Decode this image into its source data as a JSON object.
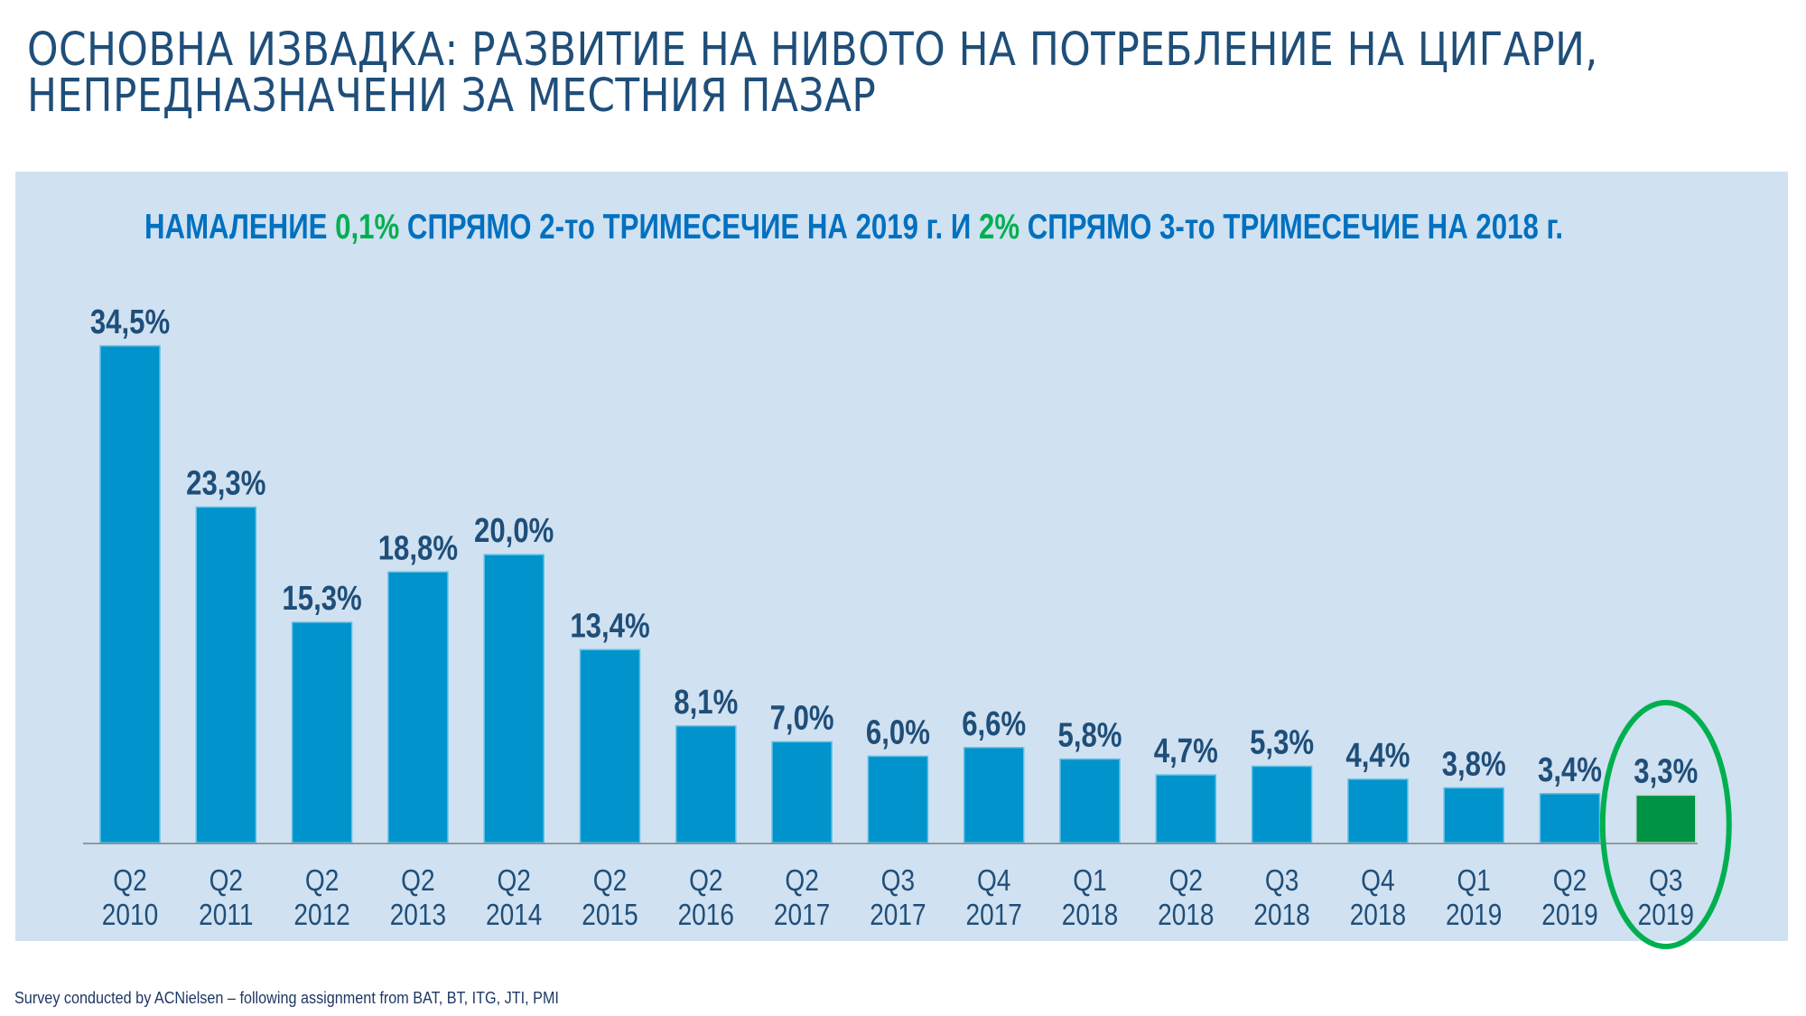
{
  "title": {
    "line1": "ОСНОВНА ИЗВАДКА: РАЗВИТИЕ НА НИВОТО НА ПОТРЕБЛЕНИЕ НА ЦИГАРИ,",
    "line2": "НЕПРЕДНАЗНАЧЕНИ ЗА МЕСТНИЯ ПАЗАР"
  },
  "subtitle": {
    "p1": "НАМАЛЕНИЕ ",
    "v1": "0,1%",
    "p2": " СПРЯМО 2-то ТРИМЕСЕЧИЕ НА 2019 г. И ",
    "v2": "2%",
    "p3": " СПРЯМО 3-то ТРИМЕСЕЧИЕ НА 2018 г."
  },
  "footer": "Survey conducted by ACNielsen – following assignment from BAT, BT, ITG, JTI, PMI",
  "colors": {
    "bar": "#0093cc",
    "highlight": "#009245",
    "accent_green": "#00b050",
    "label": "#1f4e79",
    "panel": "#d0e1f1"
  },
  "chart_data": {
    "type": "bar",
    "title": "",
    "xlabel": "",
    "ylabel": "",
    "ylim": [
      0,
      35
    ],
    "grid": false,
    "categories": [
      [
        "Q2",
        "2010"
      ],
      [
        "Q2",
        "2011"
      ],
      [
        "Q2",
        "2012"
      ],
      [
        "Q2",
        "2013"
      ],
      [
        "Q2",
        "2014"
      ],
      [
        "Q2",
        "2015"
      ],
      [
        "Q2",
        "2016"
      ],
      [
        "Q2",
        "2017"
      ],
      [
        "Q3",
        "2017"
      ],
      [
        "Q4",
        "2017"
      ],
      [
        "Q1",
        "2018"
      ],
      [
        "Q2",
        "2018"
      ],
      [
        "Q3",
        "2018"
      ],
      [
        "Q4",
        "2018"
      ],
      [
        "Q1",
        "2019"
      ],
      [
        "Q2",
        "2019"
      ],
      [
        "Q3",
        "2019"
      ]
    ],
    "values": [
      34.5,
      23.3,
      15.3,
      18.8,
      20.0,
      13.4,
      8.1,
      7.0,
      6.0,
      6.6,
      5.8,
      4.7,
      5.3,
      4.4,
      3.8,
      3.4,
      3.3
    ],
    "data_labels": [
      "34,5%",
      "23,3%",
      "15,3%",
      "18,8%",
      "20,0%",
      "13,4%",
      "8,1%",
      "7,0%",
      "6,0%",
      "6,6%",
      "5,8%",
      "4,7%",
      "5,3%",
      "4,4%",
      "3,8%",
      "3,4%",
      "3,3%"
    ],
    "highlight_index": 16
  }
}
